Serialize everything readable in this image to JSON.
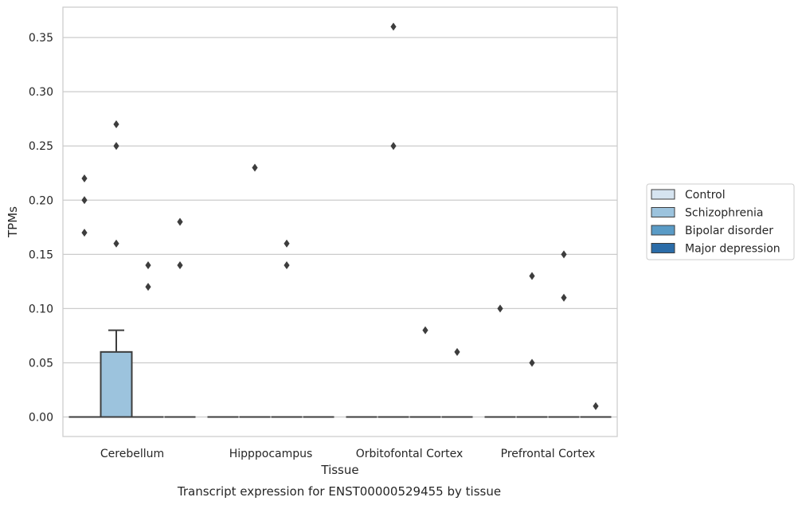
{
  "chart_data": {
    "type": "box",
    "title": "",
    "caption": "Transcript expression for ENST00000529455 by tissue",
    "xlabel": "Tissue",
    "ylabel": "TPMs",
    "ylim": [
      -0.018,
      0.378
    ],
    "yticks": [
      0.0,
      0.05,
      0.1,
      0.15,
      0.2,
      0.25,
      0.3,
      0.35
    ],
    "ytick_labels": [
      "0.00",
      "0.05",
      "0.10",
      "0.15",
      "0.20",
      "0.25",
      "0.30",
      "0.35"
    ],
    "grid": "horizontal",
    "legend_position": "right",
    "categories": [
      "Cerebellum",
      "Hipppocampus",
      "Orbitofontal Cortex",
      "Prefrontal Cortex"
    ],
    "series": [
      {
        "name": "Control",
        "color": "#d6e4f0",
        "boxes": [
          {
            "q1": 0,
            "median": 0,
            "q3": 0,
            "whisker_low": 0,
            "whisker_high": 0,
            "outliers": [
              0.17,
              0.2,
              0.22
            ]
          },
          {
            "q1": 0,
            "median": 0,
            "q3": 0,
            "whisker_low": 0,
            "whisker_high": 0,
            "outliers": []
          },
          {
            "q1": 0,
            "median": 0,
            "q3": 0,
            "whisker_low": 0,
            "whisker_high": 0,
            "outliers": []
          },
          {
            "q1": 0,
            "median": 0,
            "q3": 0,
            "whisker_low": 0,
            "whisker_high": 0,
            "outliers": [
              0.1
            ]
          }
        ]
      },
      {
        "name": "Schizophrenia",
        "color": "#9cc3dd",
        "boxes": [
          {
            "q1": 0,
            "median": 0,
            "q3": 0.06,
            "whisker_low": 0,
            "whisker_high": 0.08,
            "outliers": [
              0.16,
              0.25,
              0.27
            ]
          },
          {
            "q1": 0,
            "median": 0,
            "q3": 0,
            "whisker_low": 0,
            "whisker_high": 0,
            "outliers": [
              0.23
            ]
          },
          {
            "q1": 0,
            "median": 0,
            "q3": 0,
            "whisker_low": 0,
            "whisker_high": 0,
            "outliers": [
              0.25,
              0.36
            ]
          },
          {
            "q1": 0,
            "median": 0,
            "q3": 0,
            "whisker_low": 0,
            "whisker_high": 0,
            "outliers": [
              0.05,
              0.13
            ]
          }
        ]
      },
      {
        "name": "Bipolar disorder",
        "color": "#5a9bc6",
        "boxes": [
          {
            "q1": 0,
            "median": 0,
            "q3": 0,
            "whisker_low": 0,
            "whisker_high": 0,
            "outliers": [
              0.12,
              0.14
            ]
          },
          {
            "q1": 0,
            "median": 0,
            "q3": 0,
            "whisker_low": 0,
            "whisker_high": 0,
            "outliers": [
              0.14,
              0.16
            ]
          },
          {
            "q1": 0,
            "median": 0,
            "q3": 0,
            "whisker_low": 0,
            "whisker_high": 0,
            "outliers": [
              0.08
            ]
          },
          {
            "q1": 0,
            "median": 0,
            "q3": 0,
            "whisker_low": 0,
            "whisker_high": 0,
            "outliers": [
              0.11,
              0.15
            ]
          }
        ]
      },
      {
        "name": "Major depression",
        "color": "#2b6ca8",
        "boxes": [
          {
            "q1": 0,
            "median": 0,
            "q3": 0,
            "whisker_low": 0,
            "whisker_high": 0,
            "outliers": [
              0.14,
              0.18
            ]
          },
          {
            "q1": 0,
            "median": 0,
            "q3": 0,
            "whisker_low": 0,
            "whisker_high": 0,
            "outliers": []
          },
          {
            "q1": 0,
            "median": 0,
            "q3": 0,
            "whisker_low": 0,
            "whisker_high": 0,
            "outliers": [
              0.06
            ]
          },
          {
            "q1": 0,
            "median": 0,
            "q3": 0,
            "whisker_low": 0,
            "whisker_high": 0,
            "outliers": [
              0.01
            ]
          }
        ]
      }
    ]
  }
}
